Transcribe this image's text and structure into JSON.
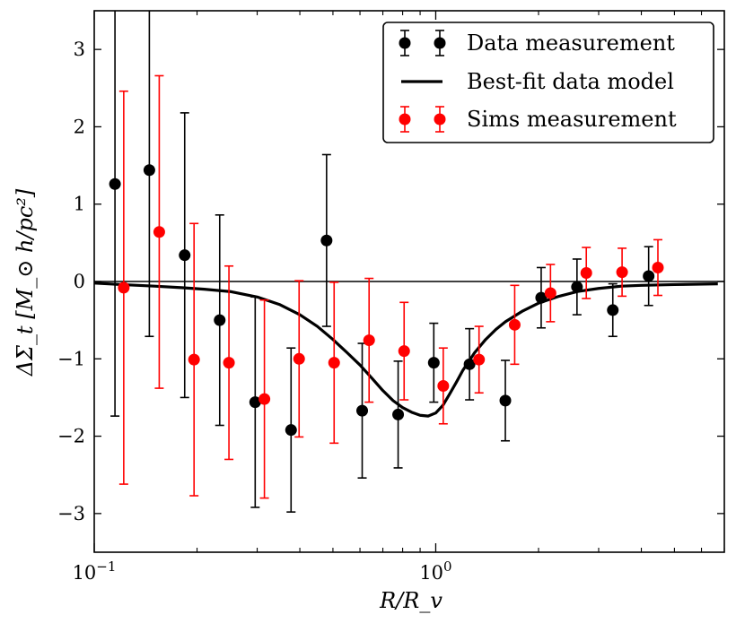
{
  "chart_data": {
    "type": "scatter",
    "title": "",
    "xlabel": "R/R_v",
    "ylabel": "ΔΣ_t [M_⊙ h/pc²]",
    "xscale": "log",
    "xlim": [
      0.1,
      7.0
    ],
    "ylim": [
      -3.5,
      3.5
    ],
    "grid": false,
    "legend_position": "top-right",
    "x_ticks": [
      {
        "value": 0.1,
        "base": "10",
        "exp": "−1"
      },
      {
        "value": 1.0,
        "base": "10",
        "exp": "0"
      }
    ],
    "y_ticks": [
      {
        "value": 3,
        "label": "3"
      },
      {
        "value": 2,
        "label": "2"
      },
      {
        "value": 1,
        "label": "1"
      },
      {
        "value": 0,
        "label": "0"
      },
      {
        "value": -1,
        "label": "−1"
      },
      {
        "value": -2,
        "label": "−2"
      },
      {
        "value": -3,
        "label": "−3"
      }
    ],
    "series": [
      {
        "name": "Data measurement",
        "color": "#000000",
        "points": [
          {
            "x": 0.115,
            "y": 1.26,
            "err": 3.0
          },
          {
            "x": 0.145,
            "y": 1.44,
            "err": 2.15
          },
          {
            "x": 0.184,
            "y": 0.34,
            "err": 1.84
          },
          {
            "x": 0.233,
            "y": -0.5,
            "err": 1.36
          },
          {
            "x": 0.296,
            "y": -1.56,
            "err": 1.36
          },
          {
            "x": 0.377,
            "y": -1.92,
            "err": 1.06
          },
          {
            "x": 0.479,
            "y": 0.53,
            "err": 1.11
          },
          {
            "x": 0.609,
            "y": -1.67,
            "err": 0.87
          },
          {
            "x": 0.776,
            "y": -1.72,
            "err": 0.69
          },
          {
            "x": 0.987,
            "y": -1.05,
            "err": 0.51
          },
          {
            "x": 1.256,
            "y": -1.07,
            "err": 0.46
          },
          {
            "x": 1.599,
            "y": -1.54,
            "err": 0.52
          },
          {
            "x": 2.036,
            "y": -0.21,
            "err": 0.39
          },
          {
            "x": 2.592,
            "y": -0.07,
            "err": 0.36
          },
          {
            "x": 3.3,
            "y": -0.37,
            "err": 0.34
          },
          {
            "x": 4.202,
            "y": 0.07,
            "err": 0.38
          }
        ]
      },
      {
        "name": "Sims measurement",
        "color": "#ff0000",
        "points": [
          {
            "x": 0.122,
            "y": -0.08,
            "err": 2.54
          },
          {
            "x": 0.155,
            "y": 0.64,
            "err": 2.02
          },
          {
            "x": 0.196,
            "y": -1.01,
            "err": 1.76
          },
          {
            "x": 0.248,
            "y": -1.05,
            "err": 1.25
          },
          {
            "x": 0.315,
            "y": -1.52,
            "err": 1.28
          },
          {
            "x": 0.398,
            "y": -1.0,
            "err": 1.01
          },
          {
            "x": 0.504,
            "y": -1.05,
            "err": 1.04
          },
          {
            "x": 0.638,
            "y": -0.76,
            "err": 0.8
          },
          {
            "x": 0.808,
            "y": -0.9,
            "err": 0.63
          },
          {
            "x": 1.052,
            "y": -1.35,
            "err": 0.49
          },
          {
            "x": 1.339,
            "y": -1.01,
            "err": 0.43
          },
          {
            "x": 1.703,
            "y": -0.56,
            "err": 0.51
          },
          {
            "x": 2.168,
            "y": -0.15,
            "err": 0.37
          },
          {
            "x": 2.76,
            "y": 0.11,
            "err": 0.33
          },
          {
            "x": 3.513,
            "y": 0.12,
            "err": 0.31
          },
          {
            "x": 4.473,
            "y": 0.18,
            "err": 0.36
          }
        ]
      }
    ],
    "model": {
      "name": "Best-fit data model",
      "color": "#000000",
      "points": [
        [
          0.1,
          -0.02
        ],
        [
          0.12,
          -0.04
        ],
        [
          0.15,
          -0.06
        ],
        [
          0.18,
          -0.08
        ],
        [
          0.21,
          -0.1
        ],
        [
          0.25,
          -0.13
        ],
        [
          0.3,
          -0.2
        ],
        [
          0.35,
          -0.3
        ],
        [
          0.4,
          -0.43
        ],
        [
          0.45,
          -0.58
        ],
        [
          0.5,
          -0.75
        ],
        [
          0.55,
          -0.92
        ],
        [
          0.6,
          -1.08
        ],
        [
          0.65,
          -1.25
        ],
        [
          0.7,
          -1.41
        ],
        [
          0.75,
          -1.54
        ],
        [
          0.8,
          -1.63
        ],
        [
          0.85,
          -1.69
        ],
        [
          0.9,
          -1.73
        ],
        [
          0.95,
          -1.74
        ],
        [
          1.0,
          -1.7
        ],
        [
          1.05,
          -1.6
        ],
        [
          1.1,
          -1.45
        ],
        [
          1.15,
          -1.3
        ],
        [
          1.2,
          -1.15
        ],
        [
          1.3,
          -0.92
        ],
        [
          1.4,
          -0.75
        ],
        [
          1.5,
          -0.62
        ],
        [
          1.6,
          -0.52
        ],
        [
          1.8,
          -0.38
        ],
        [
          2.0,
          -0.28
        ],
        [
          2.3,
          -0.19
        ],
        [
          2.6,
          -0.13
        ],
        [
          3.0,
          -0.09
        ],
        [
          3.5,
          -0.06
        ],
        [
          4.0,
          -0.05
        ],
        [
          5.0,
          -0.04
        ],
        [
          6.7,
          -0.03
        ]
      ]
    }
  }
}
